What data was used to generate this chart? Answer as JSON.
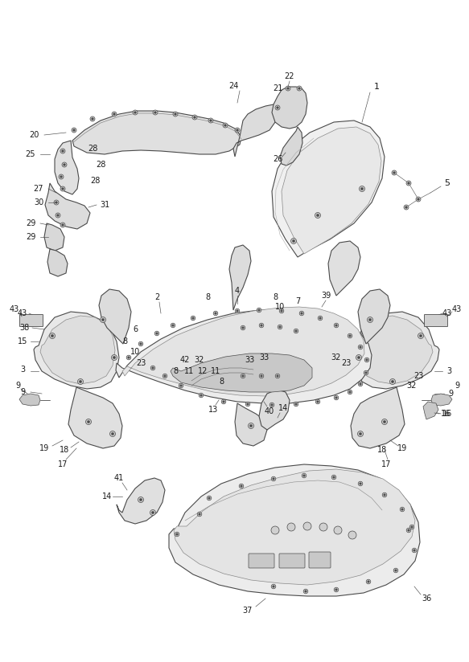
{
  "background_color": "#ffffff",
  "line_color": "#4a4a4a",
  "label_color": "#1a1a1a",
  "label_fontsize": 7.0,
  "fig_width": 5.83,
  "fig_height": 8.24,
  "dpi": 100
}
